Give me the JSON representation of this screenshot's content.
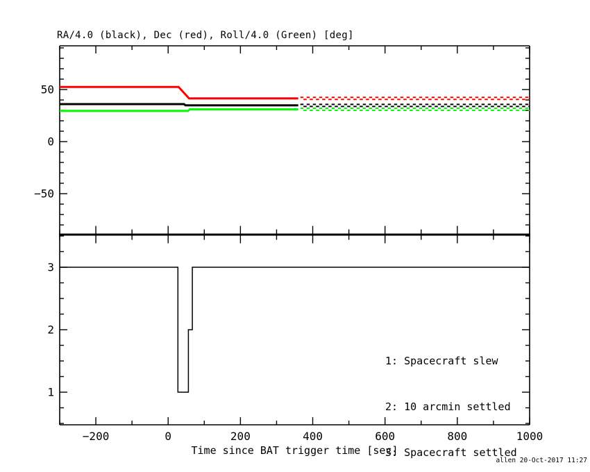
{
  "figure": {
    "title": "RA/4.0 (black), Dec (red), Roll/4.0 (Green) [deg]",
    "footer_stamp": "allen 20-Oct-2017 11:27",
    "background": "#ffffff",
    "axis_color": "#000000"
  },
  "x_axis": {
    "label": "Time since BAT trigger time [sec]",
    "range": [
      -300,
      1000
    ],
    "major_ticks": [
      {
        "v": -200,
        "label": "−200"
      },
      {
        "v": 0,
        "label": "0"
      },
      {
        "v": 200,
        "label": "200"
      },
      {
        "v": 400,
        "label": "400"
      },
      {
        "v": 600,
        "label": "600"
      },
      {
        "v": 800,
        "label": "800"
      },
      {
        "v": 1000,
        "label": "1000"
      }
    ],
    "minor_step": 100
  },
  "chart_data": [
    {
      "type": "line",
      "name": "attitude-panel",
      "title": "RA/4.0 (black), Dec (red), Roll/4.0 (Green) [deg]",
      "xlim": [
        -300,
        1000
      ],
      "ylim": [
        -89.3,
        92
      ],
      "major_ticks": [
        {
          "v": 50,
          "label": "50"
        },
        {
          "v": 0,
          "label": "0"
        },
        {
          "v": -50,
          "label": "−50"
        }
      ],
      "minor_step": 10,
      "solid_until_x": 360,
      "dotted_after_note": "lines become dotted (predicted attitude) after t=360 s",
      "series": [
        {
          "name": "ra-div4",
          "label": "RA/4.0 (black)",
          "color": "#000000",
          "points": [
            [
              -300,
              36
            ],
            [
              44,
              36
            ],
            [
              48,
              34.8
            ],
            [
              1000,
              34.8
            ]
          ]
        },
        {
          "name": "dec",
          "label": "Dec (red)",
          "color": "#ff0000",
          "points": [
            [
              -300,
              52.5
            ],
            [
              29,
              52.5
            ],
            [
              58,
              41.5
            ],
            [
              1000,
              41.5
            ]
          ]
        },
        {
          "name": "roll-div4",
          "label": "Roll/4.0 (Green)",
          "color": "#00ff00",
          "points": [
            [
              -300,
              29.5
            ],
            [
              55,
              29.5
            ],
            [
              60,
              31
            ],
            [
              1000,
              31
            ]
          ]
        }
      ]
    },
    {
      "type": "step",
      "name": "settled-flag-panel",
      "xlim": [
        -300,
        1000
      ],
      "ylim": [
        0.478,
        3.522
      ],
      "major_ticks": [
        {
          "v": 3,
          "label": "3"
        },
        {
          "v": 2,
          "label": "2"
        },
        {
          "v": 1,
          "label": "1"
        }
      ],
      "minor_step": 0.25,
      "series": [
        {
          "name": "settled-flag",
          "color": "#000000",
          "points": [
            [
              -300,
              3
            ],
            [
              27,
              3
            ],
            [
              27,
              1
            ],
            [
              56,
              1
            ],
            [
              56,
              2
            ],
            [
              67,
              2
            ],
            [
              67,
              3
            ],
            [
              1000,
              3
            ]
          ]
        }
      ],
      "legend": [
        "1: Spacecraft slew",
        "2: 10 arcmin settled",
        "3: Spacecraft settled"
      ]
    }
  ]
}
